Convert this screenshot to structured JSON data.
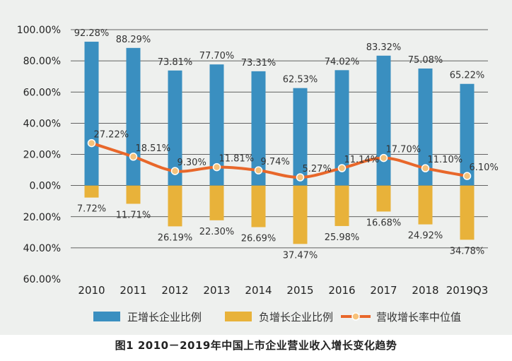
{
  "caption": "图1  2010－2019年中国上市企业营业收入增长变化趋势",
  "colors": {
    "positive_bar": "#3a8fc0",
    "negative_bar": "#e8b23a",
    "median_line": "#e8672a",
    "marker_fill": "#f6c27a",
    "grid": "#333333",
    "background": "#eef0ee"
  },
  "chart_data": {
    "type": "bar",
    "categories": [
      "2010",
      "2011",
      "2012",
      "2013",
      "2014",
      "2015",
      "2016",
      "2017",
      "2018",
      "2019Q3"
    ],
    "series": [
      {
        "name": "正增长企业比例",
        "kind": "bar",
        "values": [
          92.28,
          88.29,
          73.81,
          77.7,
          73.31,
          62.53,
          74.02,
          83.32,
          75.08,
          65.22
        ],
        "labels": [
          "92.28%",
          "88.29%",
          "73.81%",
          "77.70%",
          "73.31%",
          "62.53%",
          "74.02%",
          "83.32%",
          "75.08%",
          "65.22%"
        ]
      },
      {
        "name": "负增长企业比例",
        "kind": "bar",
        "values": [
          -7.72,
          -11.71,
          -26.19,
          -22.3,
          -26.69,
          -37.47,
          -25.98,
          -16.68,
          -24.92,
          -34.78
        ],
        "labels": [
          "7.72%",
          "11.71%",
          "26.19%",
          "22.30%",
          "26.69%",
          "37.47%",
          "25.98%",
          "16.68%",
          "24.92%",
          "34.78%"
        ]
      },
      {
        "name": "营收增长率中位值",
        "kind": "line",
        "values": [
          27.22,
          18.51,
          9.3,
          11.81,
          9.74,
          5.27,
          11.14,
          17.7,
          11.1,
          6.1
        ],
        "labels": [
          "27.22%",
          "18.51%",
          "9.30%",
          "11.81%",
          "9.74%",
          "5.27%",
          "11.14%",
          "17.70%",
          "11.10%",
          "6.10%"
        ]
      }
    ],
    "ylim": [
      -60,
      100
    ],
    "yticks": [
      100,
      80,
      60,
      40,
      20,
      0,
      -20,
      -40,
      -60
    ],
    "ytick_labels": [
      "100.00%",
      "80.00%",
      "60.00%",
      "40.00%",
      "20.00%",
      "0.00%",
      "20.00%",
      "40.00%",
      "60.00%"
    ],
    "grid": true,
    "legend": [
      "正增长企业比例",
      "负增长企业比例",
      "营收增长率中位值"
    ],
    "legend_position": "bottom"
  }
}
